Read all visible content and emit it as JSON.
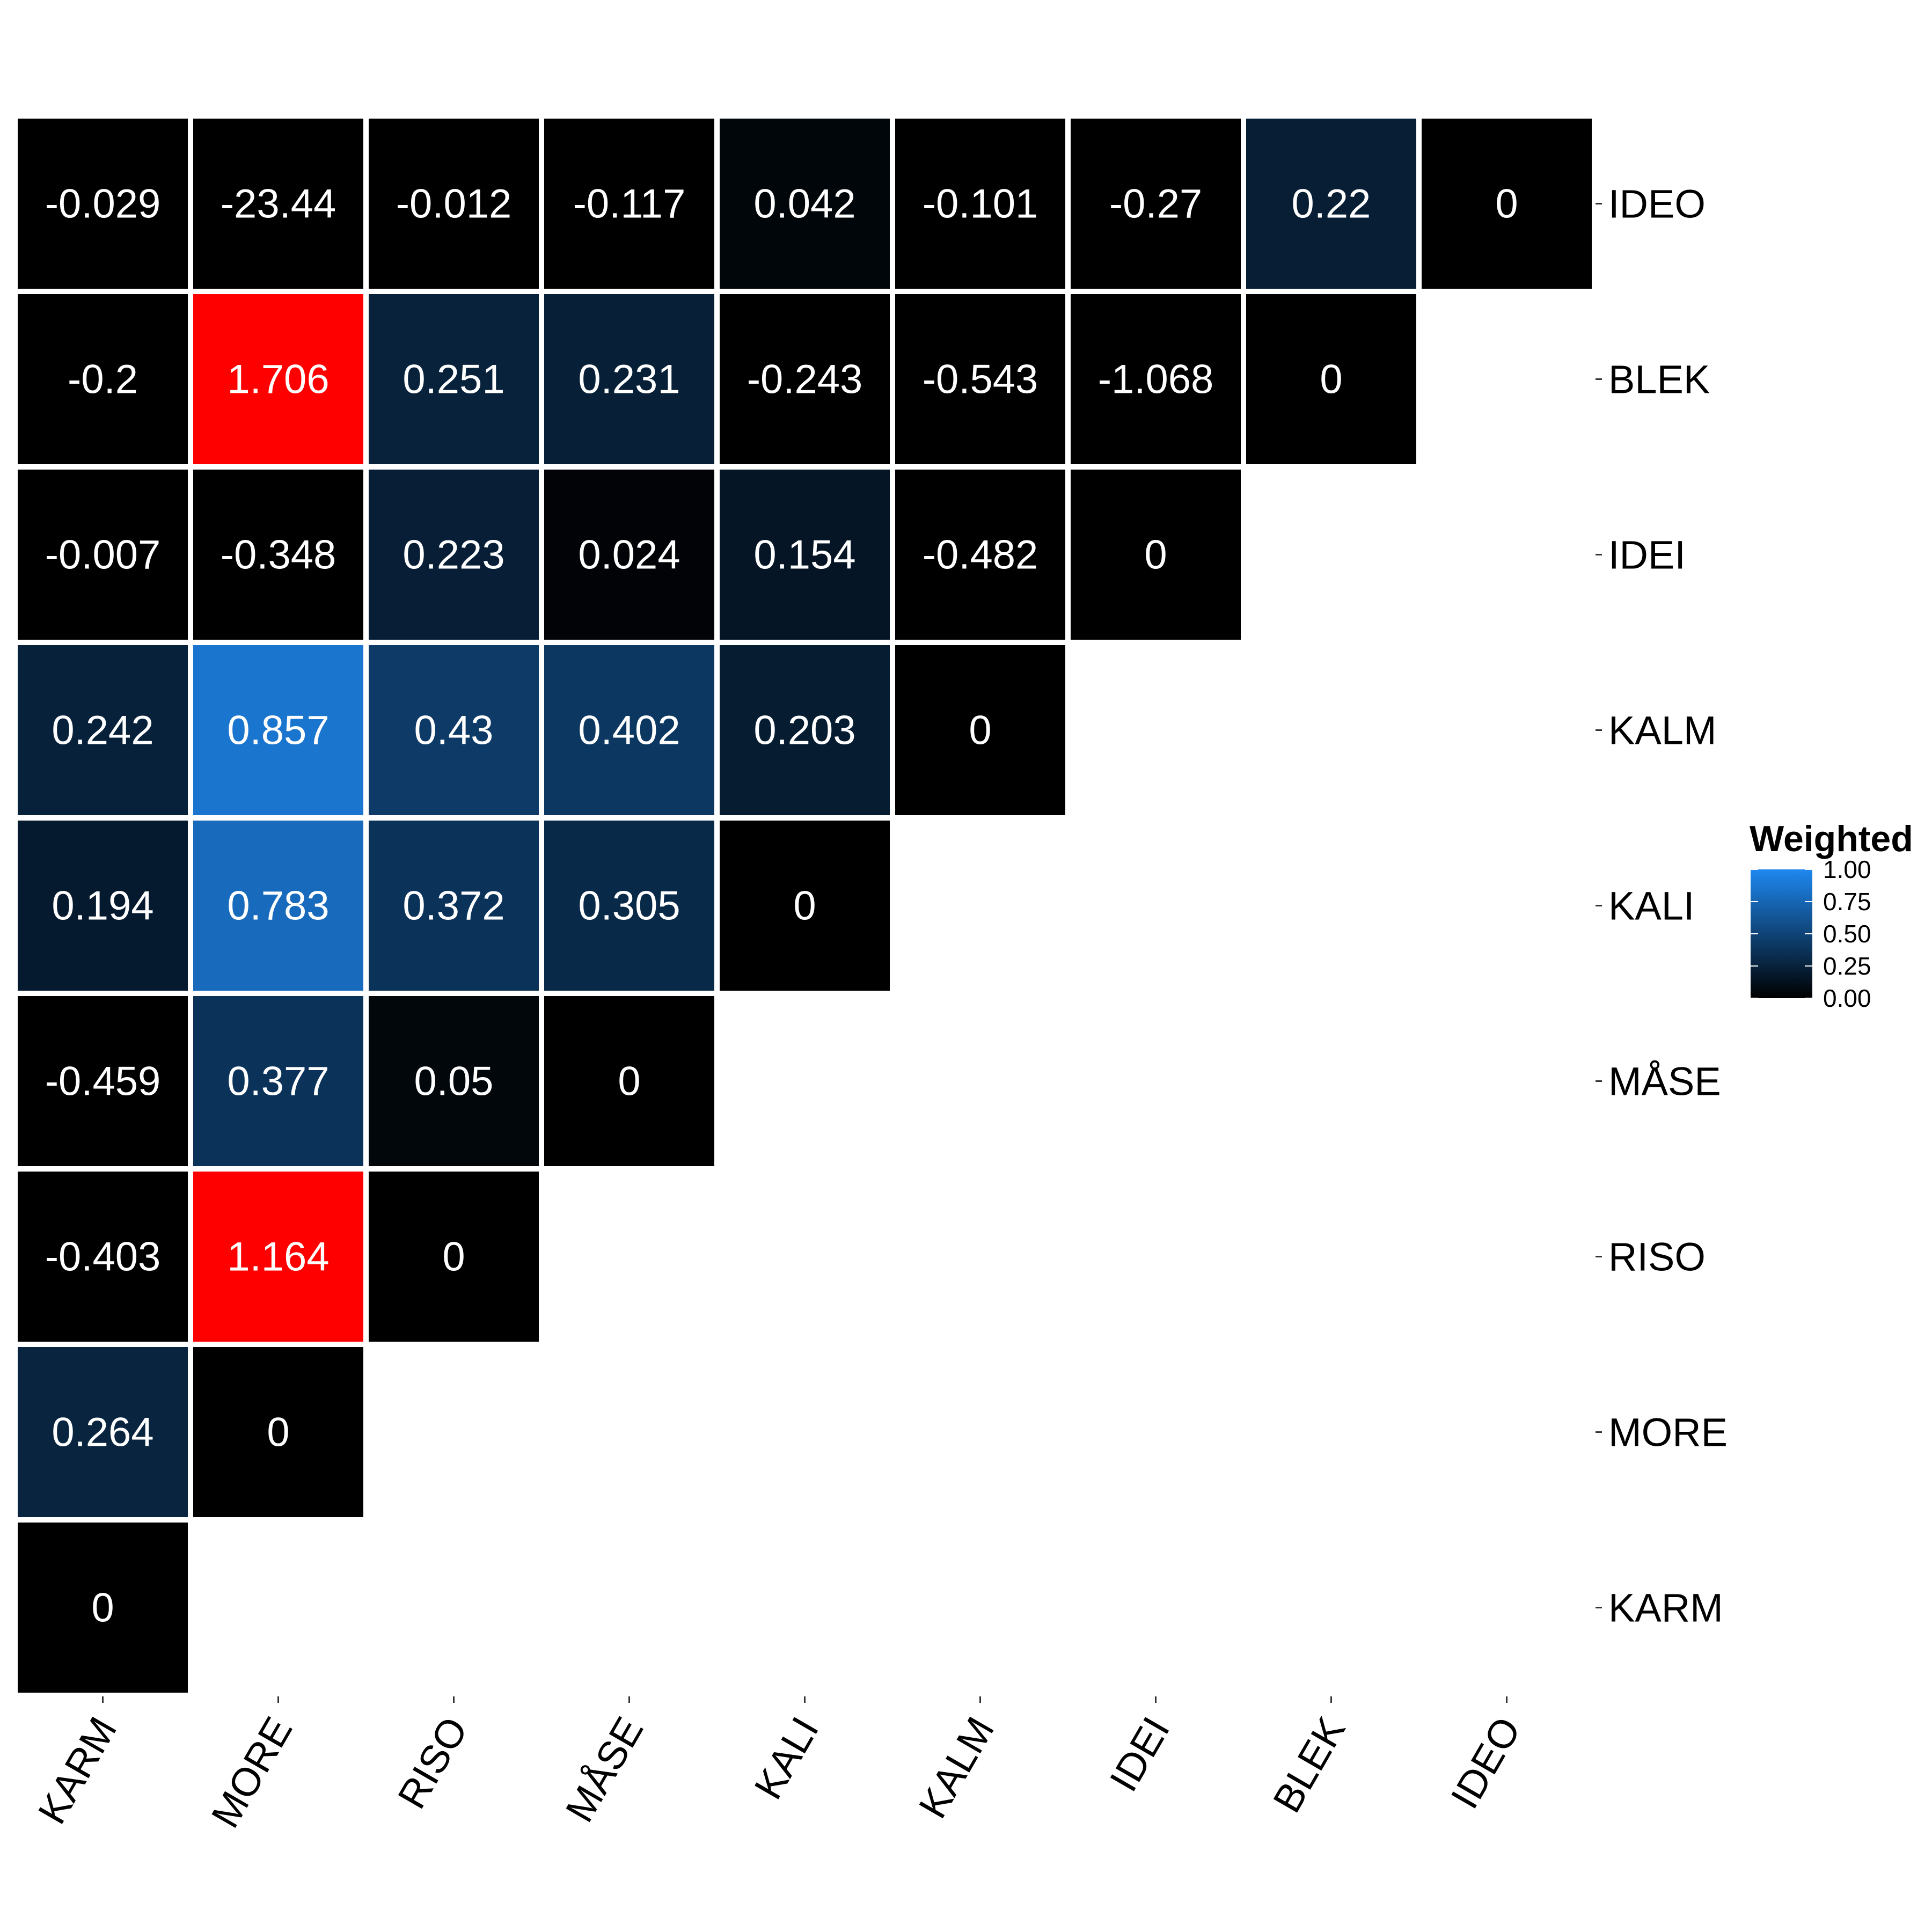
{
  "chart_data": {
    "type": "heatmap",
    "title": "",
    "xlabel": "",
    "ylabel": "",
    "x_categories": [
      "KARM",
      "MORE",
      "RISO",
      "MÅSE",
      "KALI",
      "KALM",
      "IDEI",
      "BLEK",
      "IDEO"
    ],
    "y_categories_top_to_bottom": [
      "IDEO",
      "BLEK",
      "IDEI",
      "KALM",
      "KALI",
      "MÅSE",
      "RISO",
      "MORE",
      "KARM"
    ],
    "rows": [
      {
        "y": "IDEO",
        "values": [
          -0.029,
          -23.44,
          -0.012,
          -0.117,
          0.042,
          -0.101,
          -0.27,
          0.22,
          0
        ]
      },
      {
        "y": "BLEK",
        "values": [
          -0.2,
          1.706,
          0.251,
          0.231,
          -0.243,
          -0.543,
          -1.068,
          0
        ]
      },
      {
        "y": "IDEI",
        "values": [
          -0.007,
          -0.348,
          0.223,
          0.024,
          0.154,
          -0.482,
          0
        ]
      },
      {
        "y": "KALM",
        "values": [
          0.242,
          0.857,
          0.43,
          0.402,
          0.203,
          0
        ]
      },
      {
        "y": "KALI",
        "values": [
          0.194,
          0.783,
          0.372,
          0.305,
          0
        ]
      },
      {
        "y": "MÅSE",
        "values": [
          -0.459,
          0.377,
          0.05,
          0
        ]
      },
      {
        "y": "RISO",
        "values": [
          -0.403,
          1.164,
          0
        ]
      },
      {
        "y": "MORE",
        "values": [
          0.264,
          0
        ]
      },
      {
        "y": "KARM",
        "values": [
          0
        ]
      }
    ],
    "legend": {
      "title": "Weighted",
      "position": "right",
      "limits": [
        0,
        1
      ],
      "ticks": [
        "0.00",
        "0.25",
        "0.50",
        "0.75",
        "1.00"
      ],
      "low_color": "#000000",
      "high_color": "#1e88f0",
      "out_of_range_high_color": "#ff0000",
      "out_of_range_low_color": "#000000"
    },
    "grid": false
  }
}
